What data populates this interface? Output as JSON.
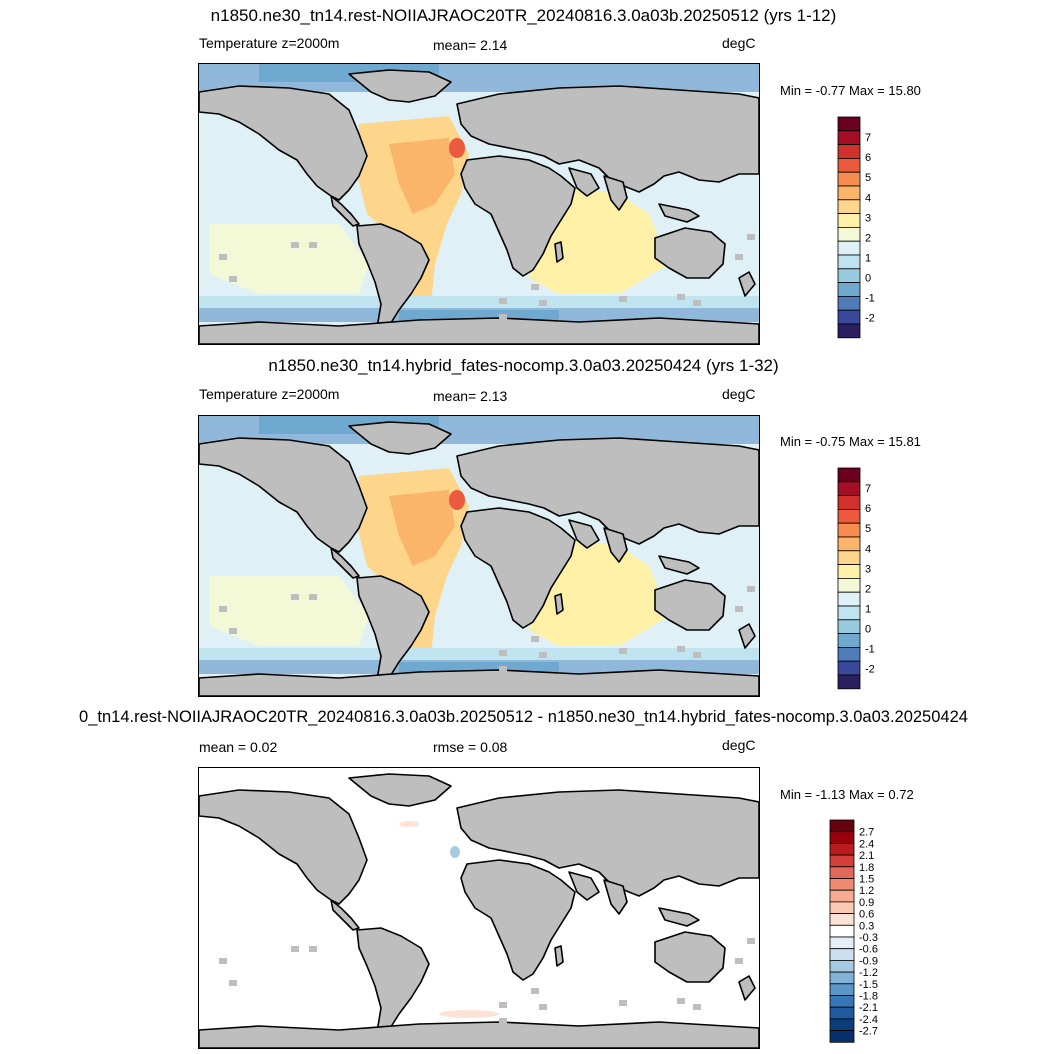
{
  "panels": [
    {
      "title": "n1850.ne30_tn14.rest-NOIIAJRAOC20TR_20240816.3.0a03b.20250512 (yrs 1-12)",
      "left_label": "Temperature z=2000m",
      "center_label": "mean=   2.14",
      "unit": "degC",
      "minmax": "Min =  -0.77 Max =  15.80",
      "colorbar": {
        "labels": [
          "7",
          "6",
          "5",
          "4",
          "3",
          "2",
          "1",
          "0",
          "-1",
          "-2"
        ],
        "colors": [
          "#6b0020",
          "#a50f25",
          "#d0312b",
          "#eb5a3c",
          "#f68c4f",
          "#fbb56a",
          "#fdd68b",
          "#fff0a8",
          "#f3f9d6",
          "#dff1f7",
          "#bfe3ef",
          "#98cbe0",
          "#6fa9cf",
          "#4f7cb9",
          "#39489b",
          "#2c1f5f"
        ]
      }
    },
    {
      "title": "n1850.ne30_tn14.hybrid_fates-nocomp.3.0a03.20250424 (yrs 1-32)",
      "left_label": "Temperature z=2000m",
      "center_label": "mean=   2.13",
      "unit": "degC",
      "minmax": "Min =  -0.75 Max =  15.81",
      "colorbar": {
        "labels": [
          "7",
          "6",
          "5",
          "4",
          "3",
          "2",
          "1",
          "0",
          "-1",
          "-2"
        ],
        "colors": [
          "#6b0020",
          "#a50f25",
          "#d0312b",
          "#eb5a3c",
          "#f68c4f",
          "#fbb56a",
          "#fdd68b",
          "#fff0a8",
          "#f3f9d6",
          "#dff1f7",
          "#bfe3ef",
          "#98cbe0",
          "#6fa9cf",
          "#4f7cb9",
          "#39489b",
          "#2c1f5f"
        ]
      }
    },
    {
      "title": "0_tn14.rest-NOIIAJRAOC20TR_20240816.3.0a03b.20250512 - n1850.ne30_tn14.hybrid_fates-nocomp.3.0a03.20250424",
      "left_label": "mean =   0.02",
      "center_label": "rmse =   0.08",
      "unit": "degC",
      "minmax": "Min =  -1.13 Max =   0.72",
      "colorbar": {
        "labels": [
          "2.7",
          "2.4",
          "2.1",
          "1.8",
          "1.5",
          "1.2",
          "0.9",
          "0.6",
          "0.3",
          "-0.3",
          "-0.6",
          "-0.9",
          "-1.2",
          "-1.5",
          "-1.8",
          "-2.1",
          "-2.4",
          "-2.7"
        ],
        "colors": [
          "#67000d",
          "#99000d",
          "#bb1b1e",
          "#d3403a",
          "#e3675a",
          "#ef8a72",
          "#f6ab92",
          "#fbcab4",
          "#fde3d6",
          "#ffffff",
          "#e3eef8",
          "#cadff0",
          "#a7cae4",
          "#82b2d7",
          "#5b96c8",
          "#3777b6",
          "#1f599e",
          "#0d3d7a",
          "#08306b"
        ]
      }
    }
  ]
}
